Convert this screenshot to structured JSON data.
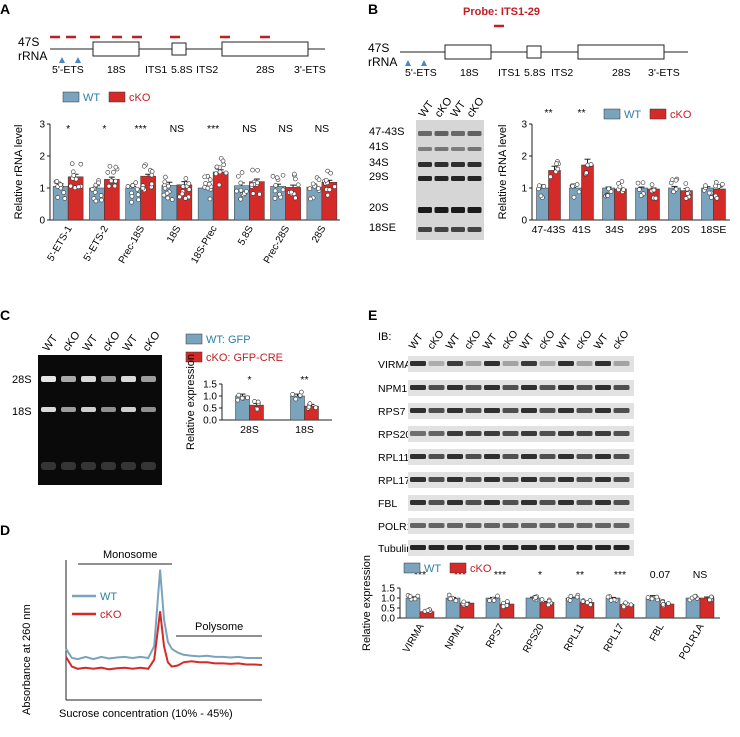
{
  "colors": {
    "wt": "#7AA3BE",
    "cko": "#D42A28",
    "probe": "#C21E23",
    "arrow": "#4A86C5",
    "gel_dark": "#0a0a0a"
  },
  "panels": {
    "A": {
      "letter": "A",
      "rrna_label_1": "47S",
      "rrna_label_2": "rRNA",
      "map_labels": [
        "5'-ETS",
        "18S",
        "ITS1",
        "5.8S",
        "ITS2",
        "28S",
        "3'-ETS"
      ]
    },
    "B": {
      "letter": "B",
      "probe_label": "Probe: ITS1-29",
      "rrna_label_1": "47S",
      "rrna_label_2": "rRNA",
      "map_labels": [
        "5'-ETS",
        "18S",
        "ITS1",
        "5.8S",
        "ITS2",
        "28S",
        "3'-ETS"
      ],
      "blot_lanes": [
        "WT",
        "cKO",
        "WT",
        "cKO"
      ],
      "blot_bands": [
        "47-43S",
        "41S",
        "34S",
        "29S",
        "20S",
        "18SE"
      ]
    },
    "C": {
      "letter": "C",
      "gel_lanes": [
        "WT",
        "cKO",
        "WT",
        "cKO",
        "WT",
        "cKO"
      ],
      "gel_bands": [
        "28S",
        "18S"
      ],
      "legend": [
        "WT: GFP",
        "cKO: GFP-CRE"
      ]
    },
    "D": {
      "letter": "D",
      "monosome_label": "Monosome",
      "polysome_label": "Polysome",
      "ylabel": "Absorbance at 260 nm",
      "xlabel": "Sucrose concentration (10% - 45%)",
      "legend": [
        "WT",
        "cKO"
      ]
    },
    "E": {
      "letter": "E",
      "ib_label": "IB:",
      "lanes": [
        "WT",
        "cKO",
        "WT",
        "cKO",
        "WT",
        "cKO",
        "WT",
        "cKO",
        "WT",
        "cKO",
        "WT",
        "cKO"
      ],
      "proteins": [
        "VIRMA",
        "NPM1",
        "RPS7",
        "RPS20",
        "RPL11",
        "RPL17",
        "FBL",
        "POLR1A",
        "Tubulin"
      ]
    }
  },
  "chart_data": [
    {
      "id": "A",
      "type": "bar",
      "categories": [
        "5'-ETS-1",
        "5'-ETS-2",
        "Prec-18S",
        "18S",
        "18S-Prec",
        "5.8S",
        "Prec-28S",
        "28S"
      ],
      "series": [
        {
          "name": "WT",
          "values": [
            1.05,
            1.0,
            1.0,
            1.08,
            1.0,
            1.07,
            1.05,
            1.03
          ]
        },
        {
          "name": "cKO",
          "values": [
            1.35,
            1.27,
            1.37,
            1.1,
            1.5,
            1.2,
            1.02,
            1.18
          ]
        }
      ],
      "errors": [
        [
          0.08,
          0.07,
          0.05,
          0.1,
          0.05,
          0.09,
          0.07,
          0.06
        ],
        [
          0.08,
          0.07,
          0.06,
          0.1,
          0.07,
          0.08,
          0.07,
          0.06
        ]
      ],
      "significance": [
        "*",
        "*",
        "***",
        "NS",
        "***",
        "NS",
        "NS",
        "NS"
      ],
      "legend": [
        "WT",
        "cKO"
      ],
      "ylabel": "Relative rRNA level",
      "ylim": [
        0,
        3
      ],
      "yticks": [
        "0",
        "1",
        "2",
        "3"
      ]
    },
    {
      "id": "B",
      "type": "bar",
      "categories": [
        "47-43S",
        "41S",
        "34S",
        "29S",
        "20S",
        "18SE"
      ],
      "series": [
        {
          "name": "WT",
          "values": [
            1.0,
            1.0,
            1.0,
            1.0,
            1.0,
            1.0
          ]
        },
        {
          "name": "cKO",
          "values": [
            1.55,
            1.72,
            0.97,
            0.97,
            0.92,
            0.97
          ]
        }
      ],
      "errors": [
        [
          0.1,
          0.12,
          0.03,
          0.03,
          0.05,
          0.04
        ],
        [
          0.13,
          0.18,
          0.03,
          0.03,
          0.06,
          0.06
        ]
      ],
      "significance": [
        "**",
        "**",
        "",
        "",
        "",
        ""
      ],
      "legend": [
        "WT",
        "cKO"
      ],
      "ylabel": "Relative rRNA level",
      "ylim": [
        0,
        3
      ],
      "yticks": [
        "0",
        "1",
        "2",
        "3"
      ]
    },
    {
      "id": "C",
      "type": "bar",
      "categories": [
        "28S",
        "18S"
      ],
      "series": [
        {
          "name": "WT",
          "values": [
            1.0,
            1.0
          ]
        },
        {
          "name": "cKO",
          "values": [
            0.62,
            0.58
          ]
        }
      ],
      "errors": [
        [
          0.08,
          0.08
        ],
        [
          0.07,
          0.07
        ]
      ],
      "significance": [
        "*",
        "**"
      ],
      "ylabel": "Relative expression",
      "ylim": [
        0,
        1.5
      ],
      "yticks": [
        "0.0",
        "0.5",
        "1.0",
        "1.5"
      ]
    },
    {
      "id": "D",
      "type": "line",
      "x_range": [
        0,
        1
      ],
      "x": [
        0,
        0.03,
        0.06,
        0.1,
        0.14,
        0.18,
        0.22,
        0.26,
        0.3,
        0.34,
        0.38,
        0.42,
        0.45,
        0.48,
        0.5,
        0.52,
        0.54,
        0.57,
        0.6,
        0.64,
        0.68,
        0.72,
        0.76,
        0.8,
        0.84,
        0.88,
        0.92,
        0.96,
        1.0
      ],
      "series": [
        {
          "name": "WT",
          "values": [
            0.95,
            0.78,
            0.76,
            0.8,
            0.76,
            0.8,
            0.77,
            0.79,
            0.8,
            0.78,
            0.8,
            0.78,
            1.0,
            2.42,
            1.5,
            1.08,
            0.95,
            0.88,
            0.84,
            0.82,
            0.81,
            0.82,
            0.8,
            0.8,
            0.79,
            0.8,
            0.78,
            0.78,
            0.78
          ]
        },
        {
          "name": "cKO",
          "values": [
            0.8,
            0.62,
            0.58,
            0.6,
            0.58,
            0.6,
            0.57,
            0.59,
            0.6,
            0.58,
            0.6,
            0.58,
            0.75,
            1.65,
            1.0,
            0.7,
            0.62,
            0.64,
            0.7,
            0.72,
            0.7,
            0.7,
            0.68,
            0.68,
            0.67,
            0.68,
            0.66,
            0.66,
            0.65
          ]
        }
      ],
      "legend": [
        "WT",
        "cKO"
      ],
      "ylabel": "Absorbance at 260 nm",
      "xlabel": "Sucrose concentration (10% - 45%)"
    },
    {
      "id": "E",
      "type": "bar",
      "categories": [
        "VIRMA",
        "NPM1",
        "RPS7",
        "RPS20",
        "RPL11",
        "RPL17",
        "FBL",
        "POLR1A"
      ],
      "series": [
        {
          "name": "WT",
          "values": [
            1.0,
            1.0,
            1.0,
            1.0,
            1.0,
            1.0,
            1.0,
            1.0
          ]
        },
        {
          "name": "cKO",
          "values": [
            0.32,
            0.75,
            0.7,
            0.78,
            0.78,
            0.68,
            0.7,
            1.0
          ]
        }
      ],
      "errors": [
        [
          0.06,
          0.03,
          0.03,
          0.04,
          0.04,
          0.03,
          0.12,
          0.05
        ],
        [
          0.03,
          0.04,
          0.05,
          0.05,
          0.02,
          0.03,
          0.04,
          0.05
        ]
      ],
      "significance": [
        "***",
        "***",
        "***",
        "*",
        "**",
        "***",
        "0.07",
        "NS"
      ],
      "legend": [
        "WT",
        "cKO"
      ],
      "ylabel": "Relative expression",
      "ylim": [
        0,
        1.5
      ],
      "yticks": [
        "0.0",
        "0.5",
        "1.0",
        "1.5"
      ]
    }
  ]
}
